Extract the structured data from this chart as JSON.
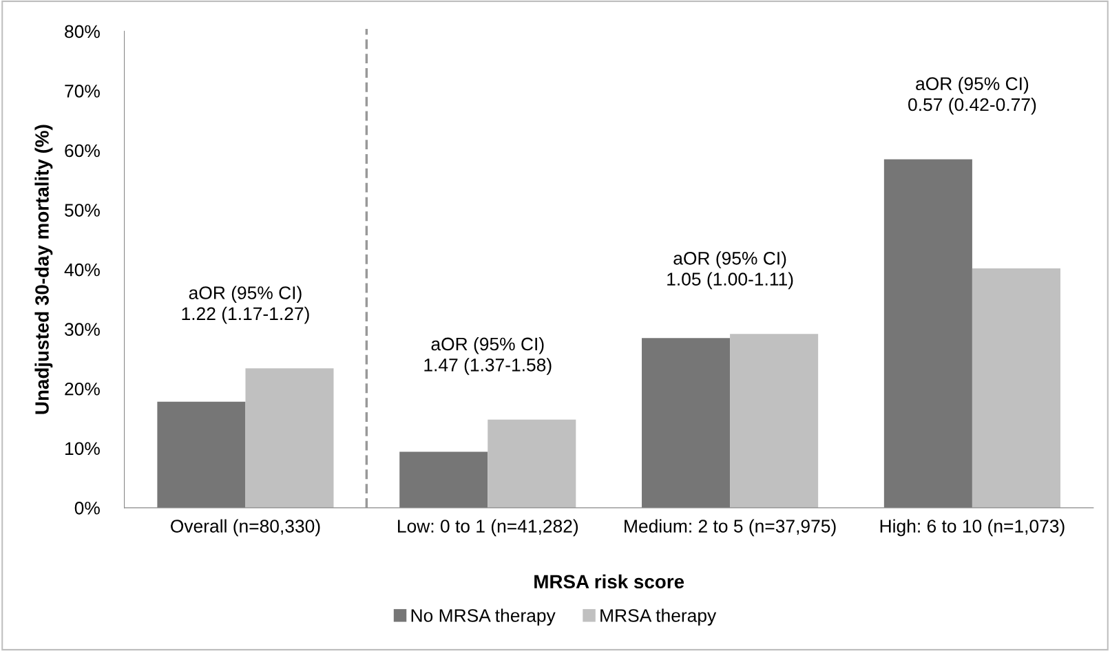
{
  "chart_data": {
    "type": "bar",
    "xlabel": "MRSA risk score",
    "ylabel": "Unadjusted 30-day mortality (%)",
    "categories": [
      "Overall (n=80,330)",
      "Low: 0 to 1 (n=41,282)",
      "Medium: 2 to 5 (n=37,975)",
      "High: 6 to 10 (n=1,073)"
    ],
    "series": [
      {
        "name": "No MRSA therapy",
        "color": "#767676",
        "values": [
          17.8,
          9.4,
          28.5,
          58.5
        ]
      },
      {
        "name": "MRSA therapy",
        "color": "#c0c0c0",
        "values": [
          23.4,
          14.8,
          29.2,
          40.2
        ]
      }
    ],
    "ylim": [
      0,
      80
    ],
    "yticks": [
      {
        "value": 0,
        "label": "0%"
      },
      {
        "value": 10,
        "label": "10%"
      },
      {
        "value": 20,
        "label": "20%"
      },
      {
        "value": 30,
        "label": "30%"
      },
      {
        "value": 40,
        "label": "40%"
      },
      {
        "value": 50,
        "label": "50%"
      },
      {
        "value": 60,
        "label": "60%"
      },
      {
        "value": 70,
        "label": "70%"
      },
      {
        "value": 80,
        "label": "80%"
      }
    ],
    "annotations": [
      {
        "text": "aOR (95% CI)\n1.22 (1.17-1.27)",
        "x": "Overall (n=80,330)",
        "y": 23.4
      },
      {
        "text": "aOR (95% CI)\n1.47 (1.37-1.58)",
        "x": "Low: 0 to 1 (n=41,282)",
        "y": 14.8
      },
      {
        "text": "aOR (95% CI)\n1.05 (1.00-1.11)",
        "x": "Medium: 2 to 5 (n=37,975)",
        "y": 29.2
      },
      {
        "text": "aOR (95% CI)\n0.57 (0.42-0.77)",
        "x": "High: 6 to 10 (n=1,073)",
        "y": 58.5
      }
    ],
    "grid": false,
    "legend": "bottom"
  }
}
